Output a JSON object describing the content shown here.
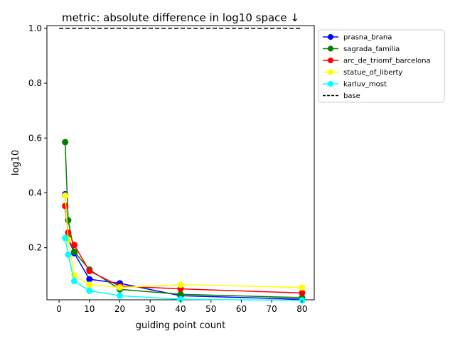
{
  "chart_data": {
    "type": "line",
    "title": "metric: absolute difference in log10 space ↓",
    "xlabel": "guiding point count",
    "ylabel": "log10",
    "xlim": [
      -4,
      84
    ],
    "ylim": [
      0.01,
      1.01
    ],
    "xticks": [
      0,
      10,
      20,
      30,
      40,
      50,
      60,
      70,
      80
    ],
    "yticks": [
      0.2,
      0.4,
      0.6,
      0.8,
      1.0
    ],
    "ytick_labels": [
      "0.2",
      "0.4",
      "0.6",
      "0.8",
      "1.0"
    ],
    "grid": false,
    "legend_position": "upper-right-outside",
    "series": [
      {
        "name": "prasna_brana",
        "color": "#0000ff",
        "marker": "circle",
        "x": [
          2,
          3,
          5,
          10,
          20,
          40,
          80
        ],
        "y": [
          0.395,
          0.235,
          0.18,
          0.085,
          0.07,
          0.025,
          0.012
        ]
      },
      {
        "name": "sagrada_familia",
        "color": "#008000",
        "marker": "circle",
        "x": [
          2,
          3,
          5,
          10,
          20,
          40,
          80
        ],
        "y": [
          0.585,
          0.3,
          0.185,
          0.12,
          0.048,
          0.03,
          0.018
        ]
      },
      {
        "name": "arc_de_triomf_barcelona",
        "color": "#ff0000",
        "marker": "circle",
        "x": [
          2,
          3,
          5,
          10,
          20,
          40,
          80
        ],
        "y": [
          0.352,
          0.255,
          0.21,
          0.115,
          0.06,
          0.05,
          0.035
        ]
      },
      {
        "name": "statue_of_liberty",
        "color": "#ffff00",
        "marker": "circle",
        "x": [
          2,
          3,
          5,
          10,
          20,
          40,
          80
        ],
        "y": [
          0.39,
          0.23,
          0.1,
          0.065,
          0.055,
          0.065,
          0.055
        ]
      },
      {
        "name": "karluv_most",
        "color": "#00ffff",
        "marker": "circle",
        "x": [
          2,
          3,
          5,
          10,
          20,
          40,
          80
        ],
        "y": [
          0.235,
          0.175,
          0.078,
          0.043,
          0.025,
          0.012,
          0.008
        ]
      },
      {
        "name": "base",
        "color": "#000000",
        "marker": "none",
        "dash": true,
        "x": [
          0,
          80
        ],
        "y": [
          1.0,
          1.0
        ]
      }
    ]
  }
}
